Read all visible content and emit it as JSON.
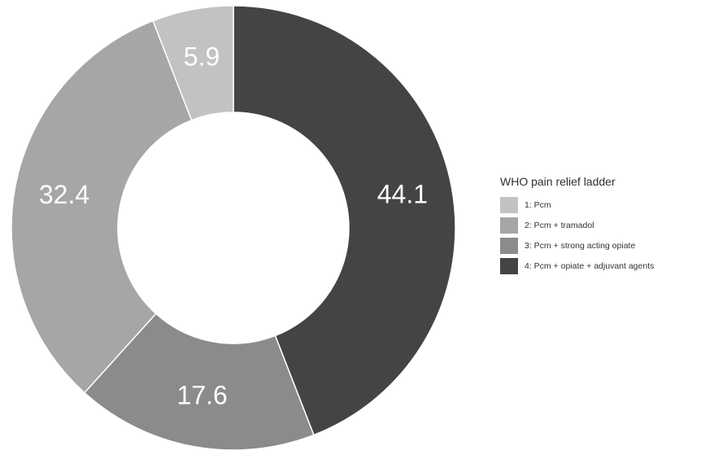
{
  "chart_data": {
    "type": "pie",
    "subtype": "donut",
    "title": "",
    "legend": {
      "title": "WHO pain relief ladder",
      "position": "right"
    },
    "start_angle_deg": 0,
    "direction": "clockwise",
    "categories": [
      "1: Pcm",
      "2: Pcm + tramadol",
      "3: Pcm + strong acting opiate",
      "4: Pcm + opiate + adjuvant agents"
    ],
    "values": [
      5.9,
      32.4,
      17.6,
      44.1
    ],
    "colors": [
      "#c2c2c2",
      "#a6a6a6",
      "#8b8b8b",
      "#444446"
    ],
    "data_labels": [
      "5.9",
      "32.4",
      "17.6",
      "44.1"
    ],
    "draw_order": [
      3,
      2,
      1,
      0
    ]
  }
}
